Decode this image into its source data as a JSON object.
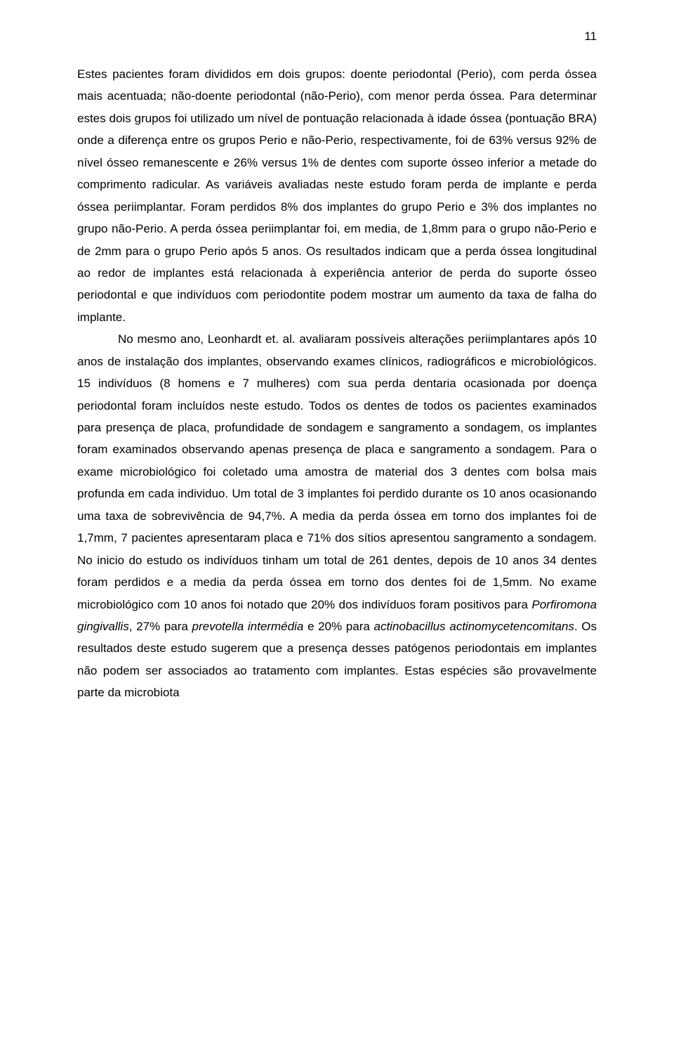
{
  "page_number": "11",
  "para1_prefix": "Estes pacientes foram divididos em dois grupos: doente periodontal (Perio), com perda óssea mais acentuada; não-doente periodontal (não-Perio), com menor perda óssea. Para determinar estes dois grupos foi utilizado um nível de pontuação relacionada à idade óssea (pontuação BRA) onde a diferença entre os grupos Perio e não-Perio, respectivamente, foi de 63% versus 92% de nível ósseo remanescente e 26% versus 1% de dentes com suporte ósseo inferior a metade do comprimento radicular. As variáveis avaliadas neste estudo foram perda de implante e perda óssea periimplantar. Foram perdidos 8% dos implantes do grupo Perio e 3% dos implantes no grupo não-Perio. A perda óssea periimplantar foi, em media, de 1,8mm para o grupo não-Perio e de 2mm para o grupo Perio após 5 anos. Os resultados indicam que a perda óssea longitudinal ao redor de implantes está relacionada à experiência anterior de perda do suporte ósseo periodontal e que indivíduos com periodontite podem mostrar um aumento da taxa de falha do implante.",
  "para2_a": "No mesmo ano, Leonhardt et. al. avaliaram possíveis alterações periimplantares após 10 anos de instalação dos implantes, observando exames clínicos, radiográficos e microbiológicos. 15 indivíduos (8 homens e 7 mulheres) com sua perda dentaria ocasionada por doença periodontal foram incluídos neste estudo. Todos os dentes de todos os pacientes examinados para presença de placa, profundidade de sondagem e sangramento a sondagem, os implantes foram examinados observando apenas presença de placa e sangramento a sondagem. Para o exame microbiológico foi coletado uma amostra de material dos 3 dentes com bolsa mais profunda em cada individuo. Um total de 3 implantes foi perdido durante os 10 anos ocasionando uma taxa de sobrevivência de  94,7%. A media da perda óssea em torno dos implantes foi de 1,7mm, 7 pacientes apresentaram placa e 71% dos sítios apresentou sangramento a sondagem. No inicio do estudo os indivíduos tinham um total de 261 dentes, depois de 10 anos 34 dentes foram perdidos e a media da perda óssea em torno dos dentes foi de 1,5mm. No exame microbiológico com 10 anos foi notado que 20% dos indivíduos foram positivos para ",
  "italic1": "Porfiromona gingivallis",
  "para2_b": ", 27% para ",
  "italic2": "prevotella intermédia",
  "para2_c": " e 20% para ",
  "italic3": "actinobacillus actinomycetencomitans",
  "para2_d": ". Os resultados deste estudo sugerem que a presença desses patógenos periodontais em implantes não podem ser associados ao tratamento com implantes. Estas espécies são provavelmente parte da microbiota"
}
